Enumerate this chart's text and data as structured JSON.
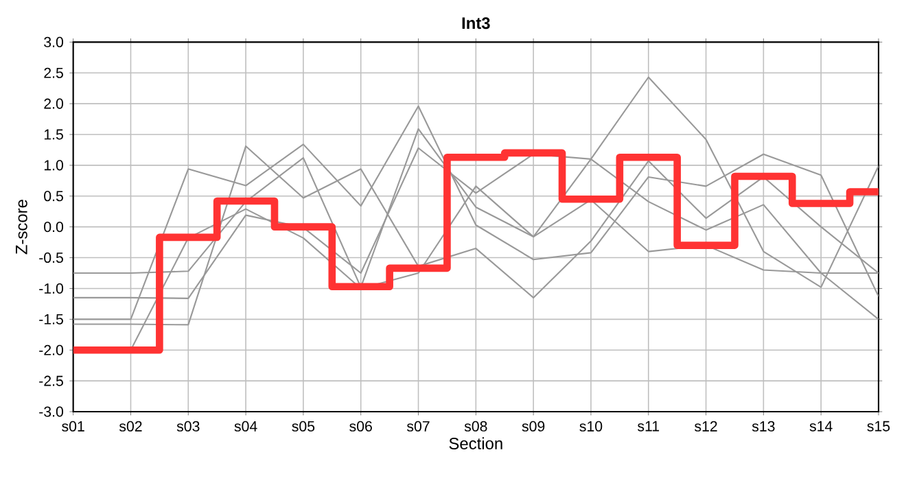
{
  "chart_data": {
    "type": "line",
    "title": "Int3",
    "xlabel": "Section",
    "ylabel": "Z-score",
    "categories": [
      "s01",
      "s02",
      "s03",
      "s04",
      "s05",
      "s06",
      "s07",
      "s08",
      "s09",
      "s10",
      "s11",
      "s12",
      "s13",
      "s14",
      "s15"
    ],
    "ylim": [
      -3,
      3
    ],
    "yticks": [
      {
        "value": -3,
        "label": "-3.0"
      },
      {
        "value": -2.5,
        "label": "-2.5"
      },
      {
        "value": -2,
        "label": "-2.0"
      },
      {
        "value": -1.5,
        "label": "-1.5"
      },
      {
        "value": -1,
        "label": "-1.0"
      },
      {
        "value": -0.5,
        "label": "-0.5"
      },
      {
        "value": 0,
        "label": "0.0"
      },
      {
        "value": 0.5,
        "label": "0.5"
      },
      {
        "value": 1,
        "label": "1.0"
      },
      {
        "value": 1.5,
        "label": "1.5"
      },
      {
        "value": 2,
        "label": "2.0"
      },
      {
        "value": 2.5,
        "label": "2.5"
      },
      {
        "value": 3,
        "label": "3.0"
      }
    ],
    "grid": true,
    "series": [
      {
        "color": "#999999",
        "values": [
          -0.75,
          -0.75,
          -0.72,
          0.41,
          1.12,
          -0.98,
          1.59,
          0.32,
          -0.16,
          1.1,
          2.43,
          1.42,
          -0.4,
          -0.98,
          0.99
        ]
      },
      {
        "color": "#999999",
        "values": [
          -1.15,
          -1.15,
          -1.16,
          0.19,
          -0.01,
          -0.75,
          1.28,
          0.55,
          1.18,
          1.1,
          0.41,
          -0.05,
          0.36,
          -0.75,
          -1.5
        ]
      },
      {
        "color": "#999999",
        "values": [
          -1.5,
          -1.5,
          0.94,
          0.67,
          1.34,
          0.34,
          1.96,
          0.03,
          -0.53,
          -0.42,
          0.81,
          0.66,
          1.18,
          0.84,
          -1.13
        ]
      },
      {
        "color": "#999999",
        "values": [
          -1.58,
          -1.58,
          -1.59,
          1.31,
          0.47,
          0.94,
          -0.64,
          -0.35,
          -1.15,
          -0.23,
          1.07,
          0.14,
          0.81,
          0.0,
          -0.75
        ]
      },
      {
        "color": "#999999",
        "values": [
          -2.0,
          -2.0,
          -0.18,
          0.29,
          -0.18,
          -1.0,
          -0.75,
          0.66,
          -0.16,
          0.44,
          -0.4,
          -0.3,
          -0.7,
          -0.75,
          -0.75
        ]
      },
      {
        "type": "step",
        "color": "#ff3333",
        "values": [
          -2.0,
          -2.0,
          -0.17,
          0.42,
          0.0,
          -0.97,
          -0.67,
          1.13,
          1.2,
          0.45,
          1.13,
          -0.3,
          0.82,
          0.38,
          0.57
        ]
      }
    ]
  }
}
